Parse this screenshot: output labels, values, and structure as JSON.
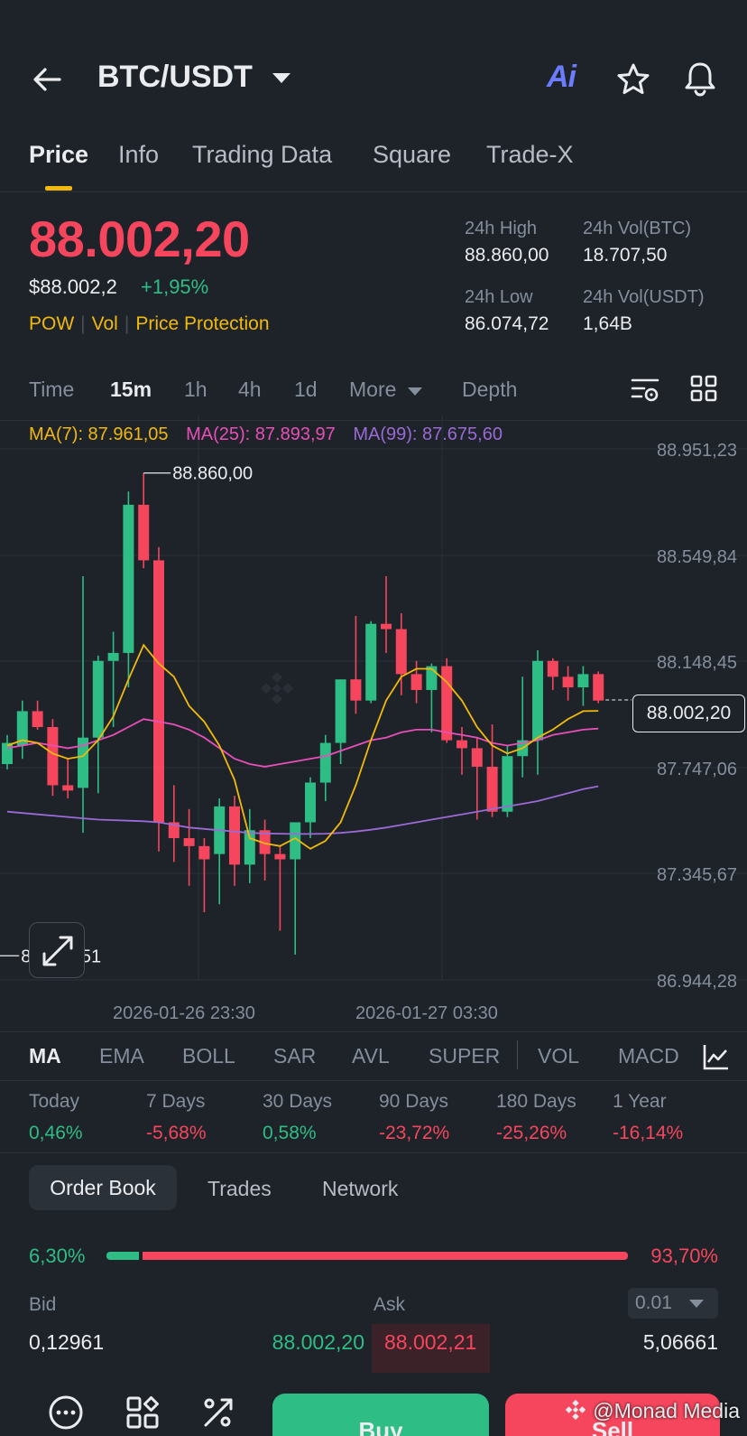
{
  "header": {
    "pair": "BTC/USDT",
    "ai_label": "Ai",
    "icons": [
      "arrow-left-icon",
      "star-icon",
      "bell-icon"
    ]
  },
  "tabs": [
    {
      "label": "Price",
      "active": true
    },
    {
      "label": "Info"
    },
    {
      "label": "Trading Data"
    },
    {
      "label": "Square"
    },
    {
      "label": "Trade-X"
    }
  ],
  "price": {
    "last": "88.002,20",
    "usd": "$88.002,2",
    "change": "+1,95%",
    "tags": [
      "POW",
      "Vol",
      "Price Protection"
    ]
  },
  "stats": {
    "high_label": "24h High",
    "high": "88.860,00",
    "volbtc_label": "24h Vol(BTC)",
    "volbtc": "18.707,50",
    "low_label": "24h Low",
    "low": "86.074,72",
    "volusdt_label": "24h Vol(USDT)",
    "volusdt": "1,64B"
  },
  "intervals": [
    {
      "label": "Time"
    },
    {
      "label": "15m",
      "active": true
    },
    {
      "label": "1h"
    },
    {
      "label": "4h"
    },
    {
      "label": "1d"
    },
    {
      "label": "More"
    },
    {
      "label": "Depth"
    }
  ],
  "ma_legend": {
    "ma7": "MA(7): 87.961,05",
    "ma25": "MA(25): 87.893,97",
    "ma99": "MA(99): 87.675,60"
  },
  "colors": {
    "ma7": "#f0b90b",
    "ma25": "#e84fb8",
    "ma99": "#9b6ad6",
    "up": "#2ebd85",
    "down": "#f6465d"
  },
  "chart_data": {
    "type": "candlestick",
    "interval": "15m",
    "y_ticks": [
      "88.951,23",
      "88.549,84",
      "88.148,45",
      "87.747,06",
      "87.345,67",
      "86.944,28"
    ],
    "ylim": [
      86944.28,
      88951.23
    ],
    "x_ticks": [
      "2026-01-26 23:30",
      "2026-01-27 03:30"
    ],
    "current_price": 88002.2,
    "current_price_label": "88.002,20",
    "high_marker": {
      "value": 88860.0,
      "label": "88.860,00"
    },
    "low_marker": {
      "value": 87035.51,
      "label": "87.035,51"
    },
    "candles": [
      [
        87760,
        87870,
        87740,
        87840
      ],
      [
        87830,
        88000,
        87780,
        87960
      ],
      [
        87960,
        88000,
        87890,
        87900
      ],
      [
        87900,
        87930,
        87640,
        87680
      ],
      [
        87680,
        87780,
        87630,
        87660
      ],
      [
        87670,
        88470,
        87500,
        87860
      ],
      [
        87860,
        88170,
        87650,
        88150
      ],
      [
        88150,
        88260,
        87900,
        88180
      ],
      [
        88180,
        88790,
        88050,
        88740
      ],
      [
        88740,
        88860,
        88500,
        88530
      ],
      [
        88530,
        88580,
        87430,
        87540
      ],
      [
        87540,
        87680,
        87390,
        87480
      ],
      [
        87480,
        87590,
        87300,
        87450
      ],
      [
        87450,
        87480,
        87200,
        87400
      ],
      [
        87420,
        87630,
        87230,
        87600
      ],
      [
        87600,
        87640,
        87300,
        87380
      ],
      [
        87380,
        87590,
        87310,
        87510
      ],
      [
        87510,
        87550,
        87320,
        87420
      ],
      [
        87420,
        87450,
        87130,
        87400
      ],
      [
        87400,
        87540,
        87040,
        87540
      ],
      [
        87540,
        87710,
        87480,
        87690
      ],
      [
        87690,
        87870,
        87620,
        87840
      ],
      [
        87840,
        88080,
        87760,
        88080
      ],
      [
        88080,
        88320,
        87950,
        88000
      ],
      [
        88000,
        88300,
        87990,
        88290
      ],
      [
        88290,
        88470,
        88180,
        88270
      ],
      [
        88270,
        88330,
        88020,
        88100
      ],
      [
        88100,
        88150,
        87990,
        88040
      ],
      [
        88040,
        88140,
        87880,
        88130
      ],
      [
        88130,
        88160,
        87840,
        87850
      ],
      [
        87850,
        87900,
        87720,
        87820
      ],
      [
        87820,
        87860,
        87550,
        87750
      ],
      [
        87750,
        87910,
        87560,
        87580
      ],
      [
        87580,
        87830,
        87560,
        87790
      ],
      [
        87790,
        88090,
        87710,
        87850
      ],
      [
        87850,
        88190,
        87720,
        88150
      ],
      [
        88150,
        88160,
        88040,
        88090
      ],
      [
        88090,
        88130,
        88000,
        88050
      ],
      [
        88050,
        88130,
        87980,
        88100
      ],
      [
        88100,
        88110,
        87990,
        88000
      ]
    ],
    "ma7": [
      87830,
      87850,
      87840,
      87800,
      87780,
      87790,
      87850,
      87940,
      88080,
      88210,
      88140,
      88090,
      87980,
      87920,
      87830,
      87700,
      87480,
      87460,
      87450,
      87480,
      87440,
      87470,
      87540,
      87680,
      87850,
      88000,
      88090,
      88120,
      88120,
      88070,
      88000,
      87900,
      87830,
      87800,
      87820,
      87860,
      87890,
      87930,
      87960,
      87961
    ],
    "ma25": [
      87820,
      87830,
      87840,
      87830,
      87820,
      87830,
      87850,
      87870,
      87900,
      87930,
      87920,
      87910,
      87890,
      87860,
      87820,
      87780,
      87760,
      87750,
      87760,
      87770,
      87780,
      87790,
      87810,
      87830,
      87850,
      87860,
      87880,
      87890,
      87890,
      87880,
      87870,
      87860,
      87840,
      87830,
      87840,
      87850,
      87870,
      87880,
      87890,
      87894
    ],
    "ma99": [
      87580,
      87575,
      87570,
      87565,
      87560,
      87555,
      87550,
      87548,
      87546,
      87544,
      87540,
      87530,
      87520,
      87515,
      87510,
      87505,
      87500,
      87498,
      87497,
      87496,
      87496,
      87497,
      87500,
      87505,
      87512,
      87520,
      87530,
      87540,
      87550,
      87560,
      87570,
      87580,
      87590,
      87600,
      87610,
      87620,
      87635,
      87650,
      87665,
      87676
    ]
  },
  "indicators": [
    {
      "label": "MA",
      "active": true
    },
    {
      "label": "EMA"
    },
    {
      "label": "BOLL"
    },
    {
      "label": "SAR"
    },
    {
      "label": "AVL"
    },
    {
      "label": "SUPER"
    },
    {
      "label": "VOL"
    },
    {
      "label": "MACD"
    }
  ],
  "performance": [
    {
      "label": "Today",
      "value": "0,46%",
      "dir": "up"
    },
    {
      "label": "7 Days",
      "value": "-5,68%",
      "dir": "down"
    },
    {
      "label": "30 Days",
      "value": "0,58%",
      "dir": "up"
    },
    {
      "label": "90 Days",
      "value": "-23,72%",
      "dir": "down"
    },
    {
      "label": "180 Days",
      "value": "-25,26%",
      "dir": "down"
    },
    {
      "label": "1 Year",
      "value": "-16,14%",
      "dir": "down"
    }
  ],
  "orderbook": {
    "tabs": [
      "Order Book",
      "Trades",
      "Network"
    ],
    "bid_pct": "6,30%",
    "ask_pct": "93,70%",
    "bid_fraction": 0.063,
    "bid_label": "Bid",
    "ask_label": "Ask",
    "tick": "0.01",
    "rows": [
      {
        "bid_qty": "0,12961",
        "bid_price": "88.002,20",
        "ask_price": "88.002,21",
        "ask_qty": "5,06661"
      }
    ]
  },
  "bottom": {
    "buy_label": "Buy",
    "sell_label": "Sell",
    "credit": "@Monad Media"
  }
}
